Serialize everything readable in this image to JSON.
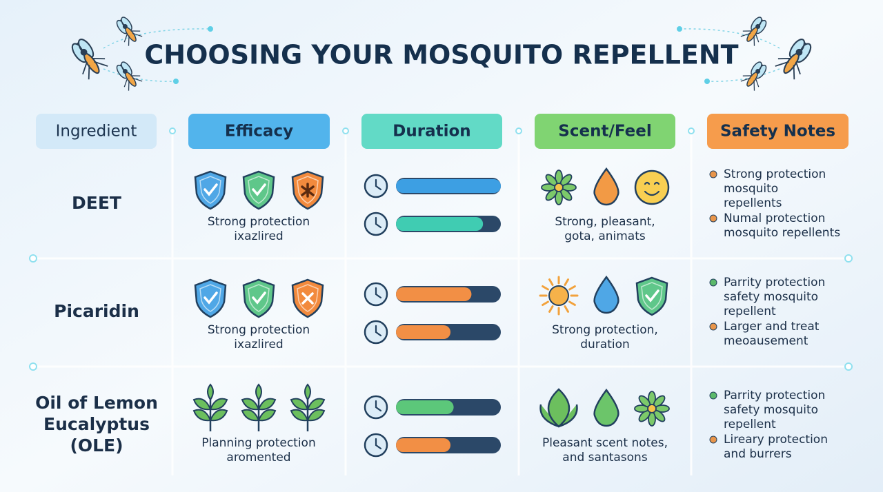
{
  "title": "CHOOSING YOUR MOSQUITO REPELLENT",
  "headers": [
    {
      "text": "Ingredient",
      "color": "#d3e9f8",
      "text_color": "#1d3550"
    },
    {
      "text": "Efficacy",
      "color": "#52b4ec",
      "text_color": "#15304d"
    },
    {
      "text": "Duration",
      "color": "#62dac6",
      "text_color": "#15304d"
    },
    {
      "text": "Scent/Feel",
      "color": "#80d472",
      "text_color": "#15304d"
    },
    {
      "text": "Safety Notes",
      "color": "#f69c4c",
      "text_color": "#15304d"
    }
  ],
  "rows": [
    {
      "ingredient": [
        "DEET"
      ],
      "efficacy": [
        "Strong protection",
        "ixazlired"
      ],
      "duration": [
        {
          "fill": 1.0,
          "color": "#3d9fe3"
        },
        {
          "fill": 0.83,
          "color": "#40ccb2"
        }
      ],
      "scent": [
        "Strong, pleasant,",
        "gota, animats"
      ],
      "safety": [
        {
          "dot": "#e8954a",
          "lines": [
            "Strong protection",
            "mosquito",
            "repellents"
          ]
        },
        {
          "dot": "#e8954a",
          "lines": [
            "Numal protection",
            "mosquito repellents"
          ]
        }
      ]
    },
    {
      "ingredient": [
        "Picaridin"
      ],
      "efficacy": [
        "Strong protection",
        "ixazlired"
      ],
      "duration": [
        {
          "fill": 0.72,
          "color": "#f28f45"
        },
        {
          "fill": 0.52,
          "color": "#f28f45"
        }
      ],
      "scent": [
        "Strong protection,",
        "duration"
      ],
      "safety": [
        {
          "dot": "#5cb96a",
          "lines": [
            "Parrity protection",
            "safety mosquito",
            "repellent"
          ]
        },
        {
          "dot": "#e8954a",
          "lines": [
            "Larger and treat",
            "meoausement"
          ]
        }
      ]
    },
    {
      "ingredient": [
        "Oil of Lemon",
        "Eucalyptus",
        "(OLE)"
      ],
      "efficacy": [
        "Planning protection",
        "aromented"
      ],
      "duration": [
        {
          "fill": 0.55,
          "color": "#5cc77a"
        },
        {
          "fill": 0.52,
          "color": "#f28f45"
        }
      ],
      "scent": [
        "Pleasant scent notes,",
        "and santasons"
      ],
      "safety": [
        {
          "dot": "#5cb96a",
          "lines": [
            "Parrity protection",
            "safety mosquito",
            "repellent"
          ]
        },
        {
          "dot": "#e8954a",
          "lines": [
            "Lireary protection",
            "and burrers"
          ]
        }
      ]
    }
  ]
}
